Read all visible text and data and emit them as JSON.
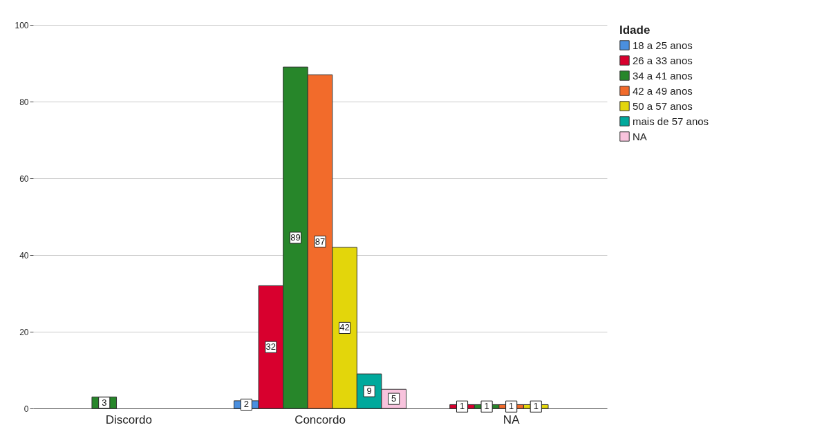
{
  "chart_data": {
    "type": "bar",
    "categories": [
      "Discordo",
      "Concordo",
      "NA"
    ],
    "legend_title": "Idade",
    "legend": "top right",
    "grid": "y",
    "data_labels": true,
    "ylim": [
      0,
      100
    ],
    "yticks": [
      0,
      20,
      40,
      60,
      80,
      100
    ],
    "series": [
      {
        "name": "18 a 25 anos",
        "color": "#4a8fdf",
        "values": [
          null,
          2,
          null
        ]
      },
      {
        "name": "26 a 33 anos",
        "color": "#d8002e",
        "values": [
          null,
          32,
          1
        ]
      },
      {
        "name": "34 a 41 anos",
        "color": "#27862a",
        "values": [
          3,
          89,
          1
        ]
      },
      {
        "name": "42 a 49 anos",
        "color": "#f26b2b",
        "values": [
          null,
          87,
          1
        ]
      },
      {
        "name": "50 a 57 anos",
        "color": "#e3d60b",
        "values": [
          null,
          42,
          1
        ]
      },
      {
        "name": "mais de 57 anos",
        "color": "#00a99c",
        "values": [
          null,
          9,
          null
        ]
      },
      {
        "name": "NA",
        "color": "#f8c3dd",
        "values": [
          null,
          5,
          null
        ]
      }
    ]
  }
}
